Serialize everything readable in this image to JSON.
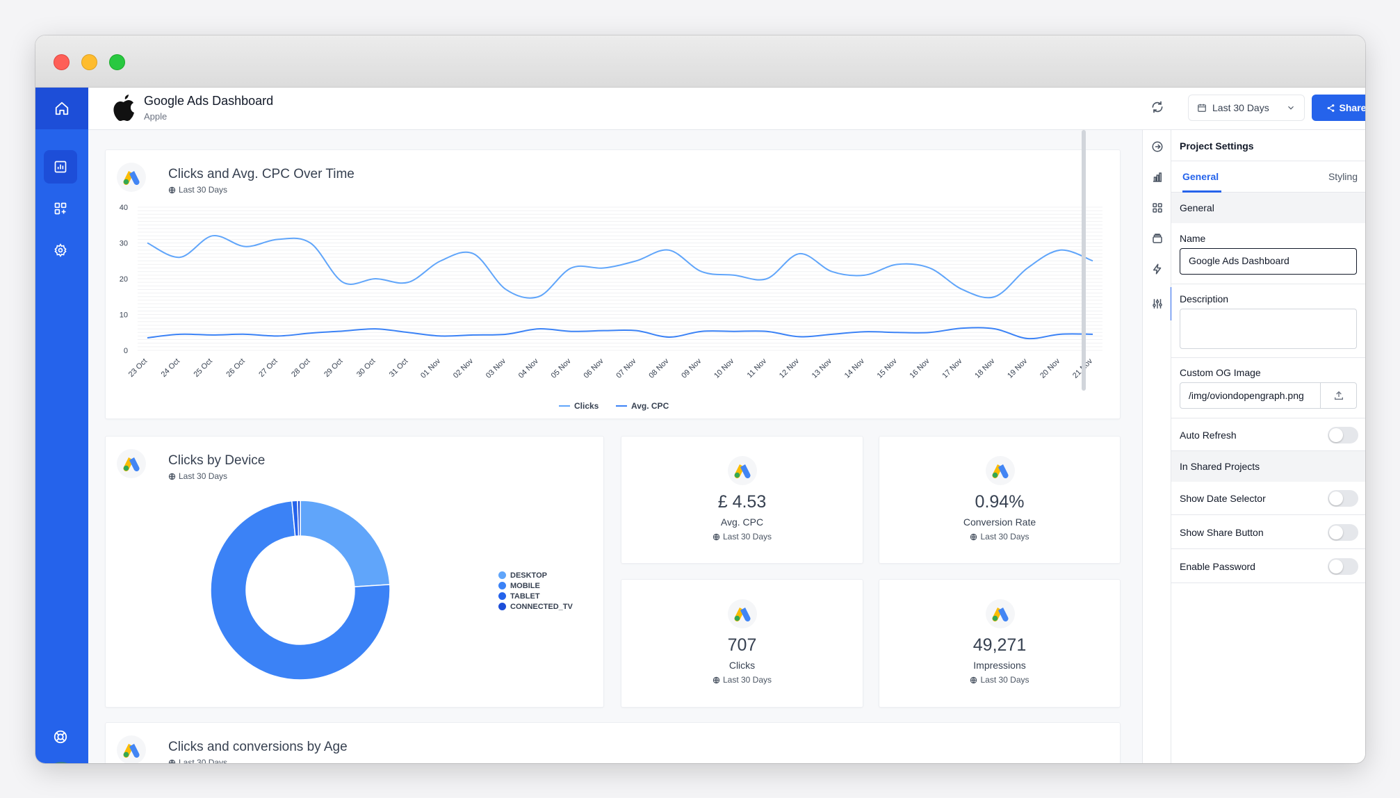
{
  "header": {
    "title": "Google Ads Dashboard",
    "subtitle": "Apple",
    "date_range": "Last 30 Days",
    "share_label": "Share"
  },
  "cards": {
    "line": {
      "title": "Clicks and Avg. CPC Over Time",
      "period": "Last 30 Days"
    },
    "device": {
      "title": "Clicks by Device",
      "period": "Last 30 Days"
    },
    "age": {
      "title": "Clicks and conversions by Age",
      "period": "Last 30 Days"
    }
  },
  "stats": [
    {
      "value": "£ 4.53",
      "label": "Avg. CPC",
      "period": "Last 30 Days"
    },
    {
      "value": "0.94%",
      "label": "Conversion Rate",
      "period": "Last 30 Days"
    },
    {
      "value": "707",
      "label": "Clicks",
      "period": "Last 30 Days"
    },
    {
      "value": "49,271",
      "label": "Impressions",
      "period": "Last 30 Days"
    }
  ],
  "chart_data": [
    {
      "type": "line",
      "x": [
        "23 Oct",
        "24 Oct",
        "25 Oct",
        "26 Oct",
        "27 Oct",
        "28 Oct",
        "29 Oct",
        "30 Oct",
        "31 Oct",
        "01 Nov",
        "02 Nov",
        "03 Nov",
        "04 Nov",
        "05 Nov",
        "06 Nov",
        "07 Nov",
        "08 Nov",
        "09 Nov",
        "10 Nov",
        "11 Nov",
        "12 Nov",
        "13 Nov",
        "14 Nov",
        "15 Nov",
        "16 Nov",
        "17 Nov",
        "18 Nov",
        "19 Nov",
        "20 Nov",
        "21 Nov"
      ],
      "series": [
        {
          "name": "Clicks",
          "color": "#60a5fa",
          "values": [
            30,
            26,
            32,
            29,
            31,
            30,
            19,
            20,
            19,
            25,
            27,
            17,
            15,
            23,
            23,
            25,
            28,
            22,
            21,
            20,
            27,
            22,
            21,
            24,
            23,
            17,
            15,
            23,
            28,
            25
          ]
        },
        {
          "name": "Avg. CPC",
          "color": "#3b82f6",
          "values": [
            3.5,
            4.5,
            4.3,
            4.5,
            4,
            4.8,
            5.4,
            6,
            5,
            4,
            4.3,
            4.5,
            6,
            5.3,
            5.5,
            5.5,
            3.7,
            5.3,
            5.3,
            5.3,
            3.8,
            4.5,
            5.2,
            5,
            5,
            6.2,
            6,
            3.3,
            4.5,
            4.5
          ]
        }
      ],
      "yticks": [
        0,
        10,
        20,
        30,
        40
      ],
      "ylim": [
        0,
        40
      ],
      "legend": "bottom"
    },
    {
      "type": "pie",
      "categories": [
        "DESKTOP",
        "MOBILE",
        "TABLET",
        "CONNECTED_TV"
      ],
      "values": [
        24,
        74.5,
        1,
        0.5
      ],
      "colors": [
        "#60a5fa",
        "#3b82f6",
        "#2563eb",
        "#1d4ed8"
      ],
      "legend": "right"
    }
  ],
  "settings": {
    "title": "Project Settings",
    "tabs": [
      "General",
      "Styling"
    ],
    "section_general": "General",
    "name_label": "Name",
    "name_value": "Google Ads Dashboard",
    "description_label": "Description",
    "og_label": "Custom OG Image",
    "og_value": "/img/oviondopengraph.png",
    "auto_refresh": "Auto Refresh",
    "section_shared": "In Shared Projects",
    "toggles": [
      "Show Date Selector",
      "Show Share Button",
      "Enable Password"
    ]
  }
}
